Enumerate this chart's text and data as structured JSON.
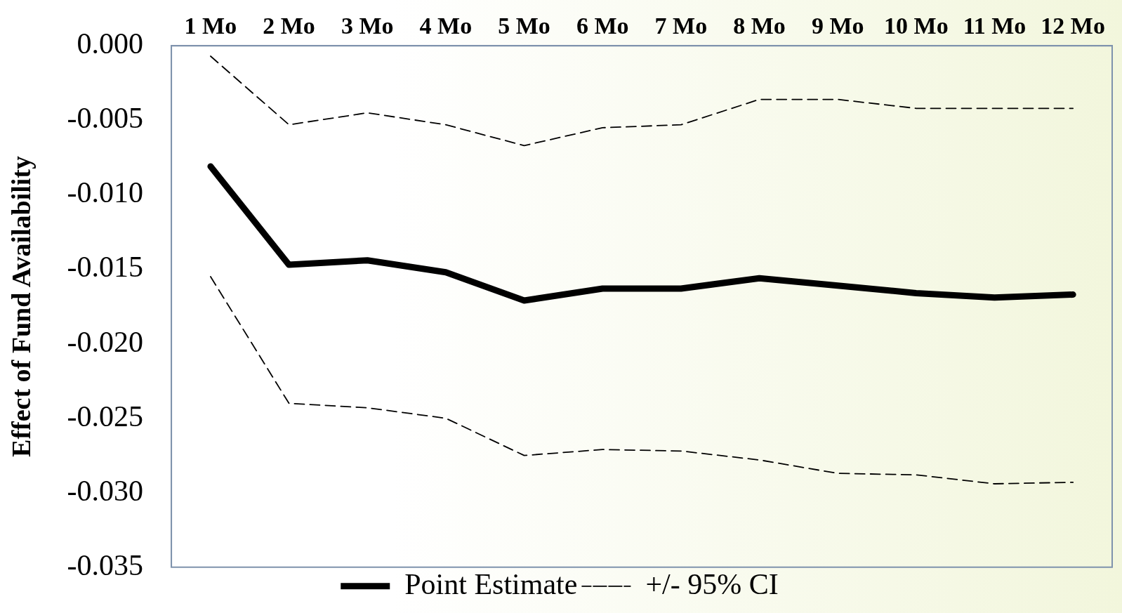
{
  "chart_data": {
    "type": "line",
    "ylabel": "Effect of Fund Availability",
    "categories": [
      "1 Mo",
      "2 Mo",
      "3 Mo",
      "4 Mo",
      "5 Mo",
      "6 Mo",
      "7 Mo",
      "8 Mo",
      "9 Mo",
      "10 Mo",
      "11 Mo",
      "12 Mo"
    ],
    "series": [
      {
        "name": "Point Estimate",
        "color": "#000000",
        "line_style": "solid",
        "values": [
          -0.0081,
          -0.0147,
          -0.0144,
          -0.0152,
          -0.0171,
          -0.0163,
          -0.0163,
          -0.0156,
          -0.0161,
          -0.0166,
          -0.0169,
          -0.0167
        ]
      },
      {
        "name": "+/- 95% CI",
        "color": "#000000",
        "line_style": "dashed",
        "values": [
          -0.0007,
          -0.0053,
          -0.0045,
          -0.0053,
          -0.0067,
          -0.0055,
          -0.0053,
          -0.0036,
          -0.0036,
          -0.0042,
          -0.0042,
          -0.0042
        ]
      },
      {
        "color": "#000000",
        "line_style": "dashed",
        "values": [
          -0.0155,
          -0.024,
          -0.0243,
          -0.025,
          -0.0275,
          -0.0271,
          -0.0272,
          -0.0278,
          -0.0287,
          -0.0288,
          -0.0294,
          -0.0293
        ]
      }
    ],
    "ylim": [
      -0.035,
      0
    ],
    "yticks": [
      {
        "value": 0,
        "label": "0.000"
      },
      {
        "value": -0.005,
        "label": "-0.005"
      },
      {
        "value": -0.01,
        "label": "-0.010"
      },
      {
        "value": -0.015,
        "label": "-0.015"
      },
      {
        "value": -0.02,
        "label": "-0.020"
      },
      {
        "value": -0.025,
        "label": "-0.025"
      },
      {
        "value": -0.03,
        "label": "-0.030"
      },
      {
        "value": -0.035,
        "label": "-0.035"
      }
    ],
    "grid": false,
    "legend": "bottom",
    "marker": "none"
  }
}
